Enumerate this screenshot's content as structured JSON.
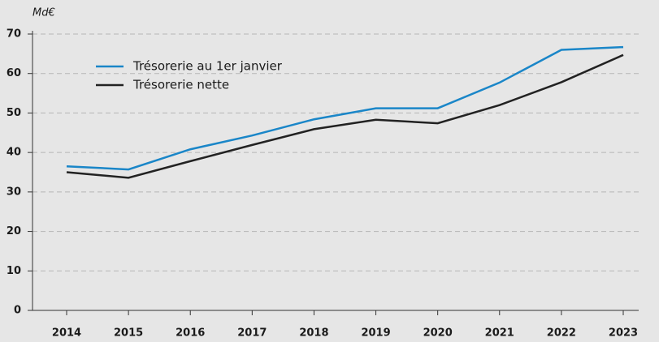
{
  "chart_data": {
    "type": "line",
    "unit_label": "Md€",
    "categories": [
      "2014",
      "2015",
      "2016",
      "2017",
      "2018",
      "2019",
      "2020",
      "2021",
      "2022",
      "2023"
    ],
    "series": [
      {
        "name": "Trésorerie au 1er janvier",
        "color": "#1a86c8",
        "values": [
          36.5,
          35.7,
          40.8,
          44.3,
          48.4,
          51.2,
          51.2,
          57.7,
          66.0,
          66.7
        ]
      },
      {
        "name": "Trésorerie nette",
        "color": "#222222",
        "values": [
          35.0,
          33.6,
          37.8,
          41.9,
          45.9,
          48.3,
          47.4,
          52.0,
          57.8,
          64.7
        ]
      }
    ],
    "ylim": [
      0,
      70
    ],
    "yticks": [
      0,
      10,
      20,
      30,
      40,
      50,
      60,
      70
    ],
    "grid": true
  }
}
